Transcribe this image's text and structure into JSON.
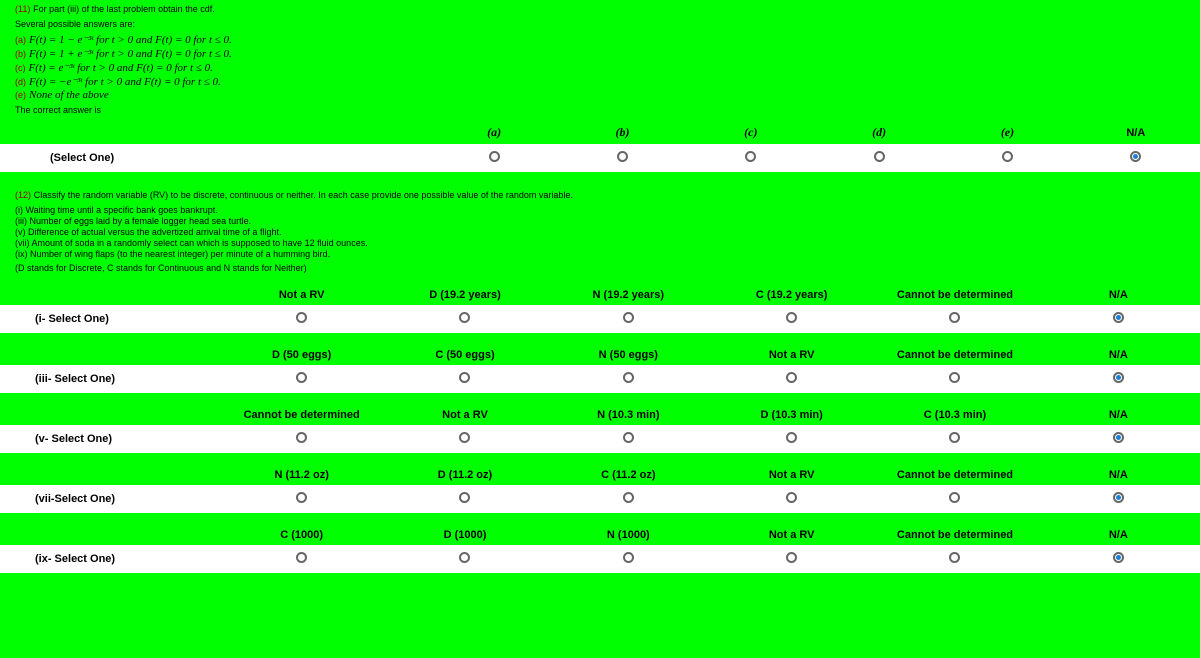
{
  "q11": {
    "num": "(11)",
    "text": "For part (iii) of the last problem obtain the cdf.",
    "intro": "Several possible answers are:",
    "opts": [
      {
        "l": "(a)",
        "t": "F(t) = 1 − e⁻³ᵗ for t > 0 and F(t) = 0 for t ≤ 0."
      },
      {
        "l": "(b)",
        "t": "F(t) = 1 + e⁻³ᵗ for t > 0 and F(t) = 0 for t ≤ 0."
      },
      {
        "l": "(c)",
        "t": "F(t) = e⁻³ᵗ for t > 0 and F(t) = 0 for t ≤ 0."
      },
      {
        "l": "(d)",
        "t": "F(t) = −e⁻³ᵗ for t > 0 and F(t) = 0 for t ≤ 0."
      },
      {
        "l": "(e)",
        "t": "None of the above"
      }
    ],
    "correct": "The correct answer is",
    "sel": "(Select One)",
    "headers": [
      "(a)",
      "(b)",
      "(c)",
      "(d)",
      "(e)",
      "N/A"
    ]
  },
  "q12": {
    "num": "(12)",
    "text": "Classify the random variable (RV) to be discrete, continuous or neither. In each case provide one possible value of the random variable.",
    "subs": [
      "(i) Waiting time until a specific bank goes bankrupt.",
      "(iii) Number of eggs laid by a female logger head sea turtle.",
      "(v) Difference of actual versus the advertized arrival time of a flight.",
      "(vii) Amount of soda in a randomly select can which is supposed to have 12 fluid ounces.",
      "(ix) Number of wing flaps (to the nearest integer) per minute of a humming bird."
    ],
    "note": "(D stands for Discrete, C stands for Continuous and N stands for Neither)",
    "rows": [
      {
        "label": "(i- Select One)",
        "h": [
          "Not a RV",
          "D (19.2 years)",
          "N (19.2 years)",
          "C (19.2 years)",
          "Cannot be determined",
          "N/A"
        ]
      },
      {
        "label": "(iii- Select One)",
        "h": [
          "D (50 eggs)",
          "C (50 eggs)",
          "N (50 eggs)",
          "Not a RV",
          "Cannot be determined",
          "N/A"
        ]
      },
      {
        "label": "(v- Select One)",
        "h": [
          "Cannot be determined",
          "Not a RV",
          "N (10.3 min)",
          "D (10.3 min)",
          "C (10.3 min)",
          "N/A"
        ]
      },
      {
        "label": "(vii-Select One)",
        "h": [
          "N (11.2 oz)",
          "D (11.2 oz)",
          "C (11.2 oz)",
          "Not a RV",
          "Cannot be determined",
          "N/A"
        ]
      },
      {
        "label": "(ix- Select One)",
        "h": [
          "C (1000)",
          "D (1000)",
          "N (1000)",
          "Not a RV",
          "Cannot be determined",
          "N/A"
        ]
      }
    ]
  },
  "layouts": {
    "q11": [
      100,
      100,
      100,
      100,
      100,
      100
    ],
    "q12": [
      [
        120,
        140,
        140,
        140,
        180,
        80
      ],
      [
        140,
        140,
        140,
        140,
        180,
        80
      ],
      [
        180,
        140,
        140,
        140,
        140,
        80
      ],
      [
        140,
        140,
        140,
        140,
        180,
        80
      ],
      [
        140,
        140,
        140,
        140,
        180,
        80
      ]
    ]
  }
}
